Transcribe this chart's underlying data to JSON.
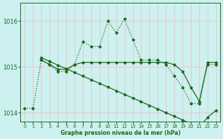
{
  "xlabel": "Graphe pression niveau de la mer (hPa)",
  "background_color": "#cdf0f0",
  "grid_color": "#f5b8b8",
  "line_color": "#1a6b1a",
  "ylim": [
    1013.8,
    1016.4
  ],
  "xlim": [
    -0.5,
    23.5
  ],
  "yticks": [
    1014,
    1015,
    1016
  ],
  "xticks": [
    0,
    1,
    2,
    3,
    4,
    5,
    6,
    7,
    8,
    9,
    10,
    11,
    12,
    13,
    14,
    15,
    16,
    17,
    18,
    19,
    20,
    21,
    22,
    23
  ],
  "series": [
    {
      "x": [
        0,
        1,
        2,
        3,
        4,
        5,
        6,
        7,
        8,
        9,
        10,
        11,
        12,
        13,
        14,
        15,
        16,
        17,
        18,
        19,
        20,
        21,
        22,
        23
      ],
      "y": [
        1014.1,
        1014.1,
        1015.15,
        1015.05,
        1014.9,
        1014.9,
        1015.05,
        1015.55,
        1015.45,
        1015.45,
        1016.0,
        1015.75,
        1016.05,
        1015.6,
        1015.15,
        1015.15,
        1015.15,
        1015.05,
        1014.8,
        1014.55,
        1014.2,
        1014.2,
        1015.05,
        1015.05
      ],
      "linestyle": "dotted",
      "linewidth": 0.9
    },
    {
      "x": [
        2,
        3,
        4,
        5,
        6,
        7,
        8,
        9,
        10,
        11,
        12,
        13,
        14,
        15,
        16,
        17,
        18,
        19,
        20,
        21,
        22,
        23
      ],
      "y": [
        1015.2,
        1015.12,
        1015.04,
        1014.96,
        1014.88,
        1014.8,
        1014.72,
        1014.64,
        1014.56,
        1014.48,
        1014.4,
        1014.32,
        1014.24,
        1014.16,
        1014.08,
        1014.0,
        1013.92,
        1013.84,
        1013.76,
        1013.68,
        1013.9,
        1014.05
      ],
      "linestyle": "solid",
      "linewidth": 0.9
    },
    {
      "x": [
        2,
        3,
        4,
        5,
        6,
        7,
        8,
        9,
        10,
        11,
        12,
        13,
        14,
        15,
        16,
        17,
        18,
        19,
        20,
        21,
        22,
        23
      ],
      "y": [
        1015.15,
        1015.05,
        1014.95,
        1014.95,
        1015.05,
        1015.1,
        1015.1,
        1015.1,
        1015.1,
        1015.1,
        1015.1,
        1015.1,
        1015.1,
        1015.1,
        1015.1,
        1015.1,
        1015.05,
        1014.9,
        1014.55,
        1014.25,
        1015.1,
        1015.1
      ],
      "linestyle": "solid",
      "linewidth": 0.9
    }
  ]
}
